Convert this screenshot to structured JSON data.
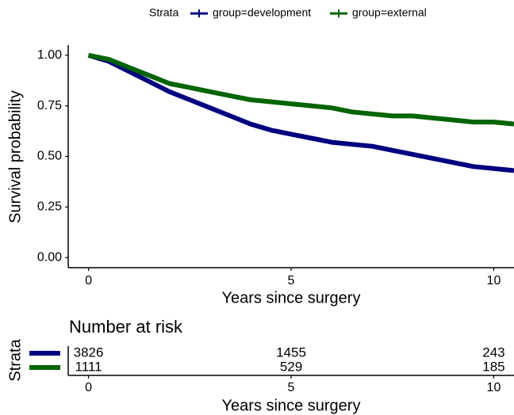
{
  "chart_data": [
    {
      "type": "line",
      "legend_title": "Strata",
      "legend": "top",
      "x_label": "Years since surgery",
      "y_label": "Survival probability",
      "x": [
        0,
        0.5,
        1,
        1.5,
        2,
        2.5,
        3,
        3.5,
        4,
        4.5,
        5,
        5.5,
        6,
        6.5,
        7,
        7.5,
        8,
        8.5,
        9,
        9.5,
        10,
        10.5
      ],
      "series": [
        {
          "name": "group=development",
          "color": "#000080",
          "values": [
            1.0,
            0.97,
            0.92,
            0.87,
            0.82,
            0.78,
            0.74,
            0.7,
            0.66,
            0.63,
            0.61,
            0.59,
            0.57,
            0.56,
            0.55,
            0.53,
            0.51,
            0.49,
            0.47,
            0.45,
            0.44,
            0.43
          ]
        },
        {
          "name": "group=external",
          "color": "#006400",
          "values": [
            1.0,
            0.98,
            0.94,
            0.9,
            0.86,
            0.84,
            0.82,
            0.8,
            0.78,
            0.77,
            0.76,
            0.75,
            0.74,
            0.72,
            0.71,
            0.7,
            0.7,
            0.69,
            0.68,
            0.67,
            0.67,
            0.66
          ]
        }
      ],
      "xlim": [
        -0.5,
        10.5
      ],
      "xticks": [
        0,
        5,
        10
      ],
      "ylim": [
        -0.05,
        1.05
      ],
      "yticks": [
        {
          "value": 0,
          "label": "0.00"
        },
        {
          "value": 0.25,
          "label": "0.25"
        },
        {
          "value": 0.5,
          "label": "0.50"
        },
        {
          "value": 0.75,
          "label": "0.75"
        },
        {
          "value": 1,
          "label": "1.00"
        }
      ]
    },
    {
      "type": "table",
      "title": "Number at risk",
      "x_label": "Years since surgery",
      "y_label": "Strata",
      "x": [
        0,
        5,
        10
      ],
      "series": [
        {
          "color": "#000080",
          "values": [
            3826,
            1455,
            243
          ]
        },
        {
          "color": "#006400",
          "values": [
            1111,
            529,
            185
          ]
        }
      ],
      "xlim": [
        -0.5,
        10.5
      ],
      "xticks": [
        0,
        5,
        10
      ]
    }
  ]
}
